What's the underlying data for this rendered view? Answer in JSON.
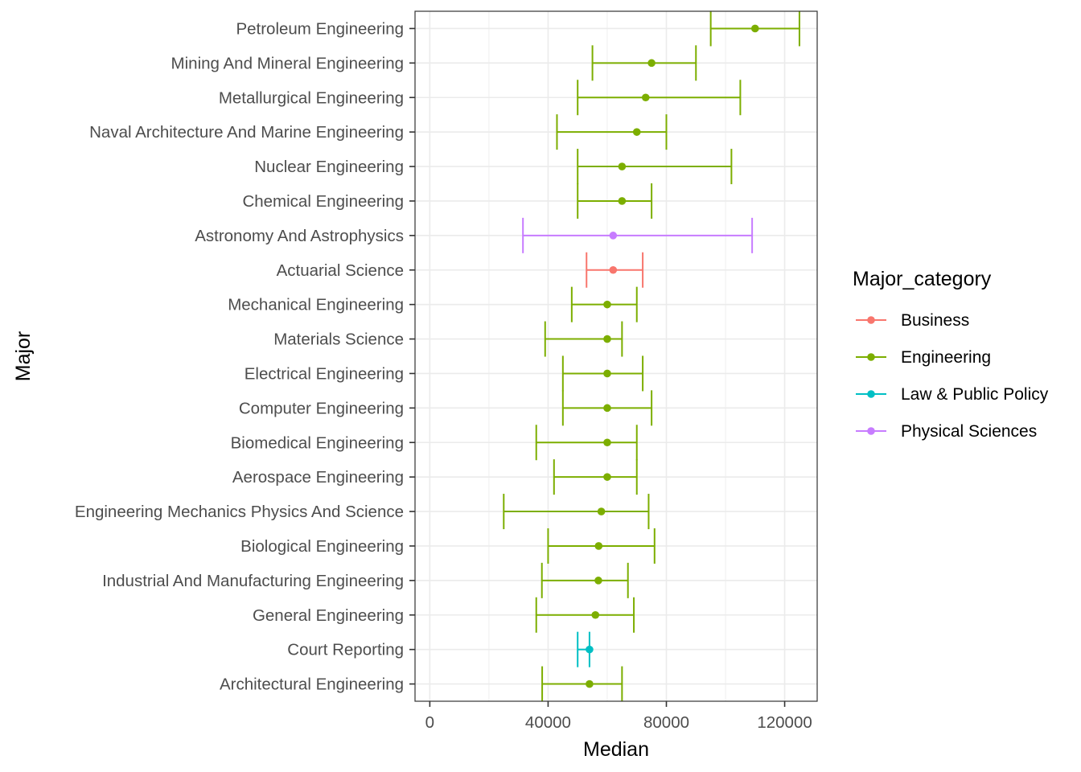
{
  "chart_data": {
    "type": "errorbar",
    "orientation": "horizontal",
    "xlabel": "Median",
    "ylabel": "Major",
    "xlim": [
      -5000,
      131000
    ],
    "x_ticks": [
      0,
      40000,
      80000,
      120000
    ],
    "x_tick_labels": [
      "0",
      "40000",
      "80000",
      "120000"
    ],
    "grid": true,
    "legend": {
      "title": "Major_category",
      "placement": "right",
      "entries": [
        {
          "label": "Business",
          "color": "#F8766D"
        },
        {
          "label": "Engineering",
          "color": "#7CAE00"
        },
        {
          "label": "Law & Public Policy",
          "color": "#00BFC4"
        },
        {
          "label": "Physical Sciences",
          "color": "#C77CFF"
        }
      ]
    },
    "points": [
      {
        "major": "Petroleum Engineering",
        "category": "Engineering",
        "median": 110000,
        "low": 95000,
        "high": 125000
      },
      {
        "major": "Mining And Mineral Engineering",
        "category": "Engineering",
        "median": 75000,
        "low": 55000,
        "high": 90000
      },
      {
        "major": "Metallurgical Engineering",
        "category": "Engineering",
        "median": 73000,
        "low": 50000,
        "high": 105000
      },
      {
        "major": "Naval Architecture And Marine Engineering",
        "category": "Engineering",
        "median": 70000,
        "low": 43000,
        "high": 80000
      },
      {
        "major": "Nuclear Engineering",
        "category": "Engineering",
        "median": 65000,
        "low": 50000,
        "high": 102000
      },
      {
        "major": "Chemical Engineering",
        "category": "Engineering",
        "median": 65000,
        "low": 50000,
        "high": 75000
      },
      {
        "major": "Astronomy And Astrophysics",
        "category": "Physical Sciences",
        "median": 62000,
        "low": 31500,
        "high": 109000
      },
      {
        "major": "Actuarial Science",
        "category": "Business",
        "median": 62000,
        "low": 53000,
        "high": 72000
      },
      {
        "major": "Mechanical Engineering",
        "category": "Engineering",
        "median": 60000,
        "low": 48000,
        "high": 70000
      },
      {
        "major": "Materials Science",
        "category": "Engineering",
        "median": 60000,
        "low": 39000,
        "high": 65000
      },
      {
        "major": "Electrical Engineering",
        "category": "Engineering",
        "median": 60000,
        "low": 45000,
        "high": 72000
      },
      {
        "major": "Computer Engineering",
        "category": "Engineering",
        "median": 60000,
        "low": 45000,
        "high": 75000
      },
      {
        "major": "Biomedical Engineering",
        "category": "Engineering",
        "median": 60000,
        "low": 36000,
        "high": 70000
      },
      {
        "major": "Aerospace Engineering",
        "category": "Engineering",
        "median": 60000,
        "low": 42000,
        "high": 70000
      },
      {
        "major": "Engineering Mechanics Physics And Science",
        "category": "Engineering",
        "median": 58000,
        "low": 25000,
        "high": 74000
      },
      {
        "major": "Biological Engineering",
        "category": "Engineering",
        "median": 57100,
        "low": 40000,
        "high": 76000
      },
      {
        "major": "Industrial And Manufacturing Engineering",
        "category": "Engineering",
        "median": 57000,
        "low": 37900,
        "high": 67000
      },
      {
        "major": "General Engineering",
        "category": "Engineering",
        "median": 56000,
        "low": 36000,
        "high": 69000
      },
      {
        "major": "Court Reporting",
        "category": "Law & Public Policy",
        "median": 54000,
        "low": 50000,
        "high": 54000
      },
      {
        "major": "Architectural Engineering",
        "category": "Engineering",
        "median": 54000,
        "low": 38000,
        "high": 65000
      }
    ]
  }
}
